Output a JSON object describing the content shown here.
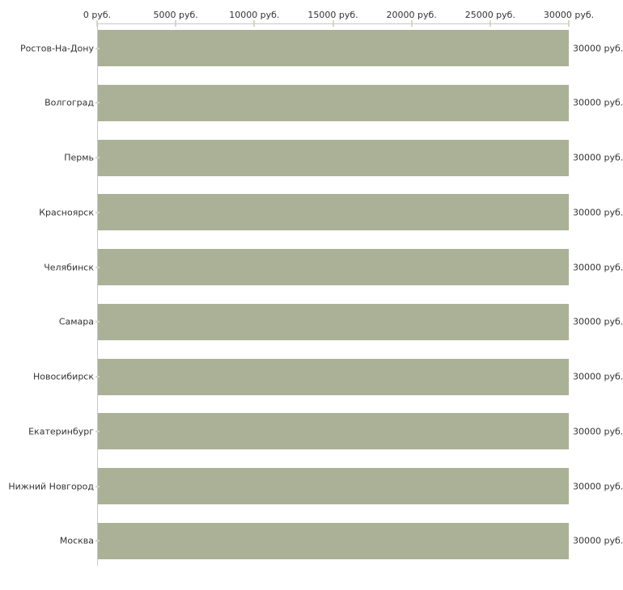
{
  "chart_data": {
    "type": "bar",
    "orientation": "horizontal",
    "title": "",
    "xlabel": "",
    "ylabel": "",
    "categories": [
      "Ростов-На-Дону",
      "Волгоград",
      "Пермь",
      "Красноярск",
      "Челябинск",
      "Самара",
      "Новосибирск",
      "Екатеринбург",
      "Нижний Новгород",
      "Москва"
    ],
    "values": [
      30000,
      30000,
      30000,
      30000,
      30000,
      30000,
      30000,
      30000,
      30000,
      30000
    ],
    "value_labels": [
      "30000 руб.",
      "30000 руб.",
      "30000 руб.",
      "30000 руб.",
      "30000 руб.",
      "30000 руб.",
      "30000 руб.",
      "30000 руб.",
      "30000 руб.",
      "30000 руб."
    ],
    "x_axis": {
      "position": "top",
      "min": 0,
      "max": 30000,
      "unit": "руб.",
      "ticks": [
        0,
        5000,
        10000,
        15000,
        20000,
        25000,
        30000
      ],
      "tick_labels": [
        "0 руб.",
        "5000 руб.",
        "10000 руб.",
        "15000 руб.",
        "20000 руб.",
        "25000 руб.",
        "30000 руб."
      ]
    },
    "grid": false,
    "legend": false,
    "colors": {
      "bar": "#aab197",
      "axis_line": "#c9c9c9",
      "tick_mark": "#d8d8c2",
      "text": "#333333",
      "background": "#ffffff"
    }
  }
}
